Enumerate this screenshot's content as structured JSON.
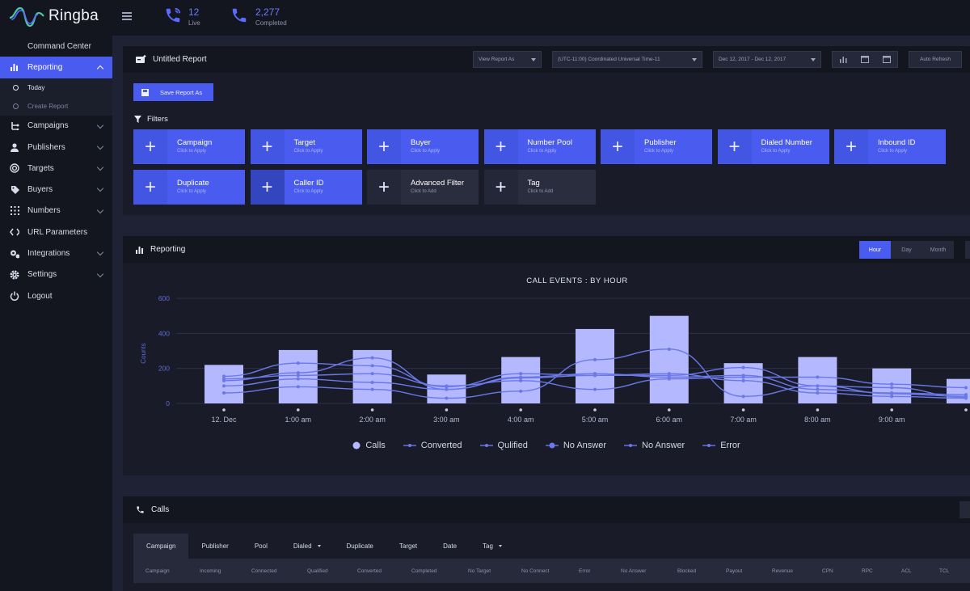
{
  "app": {
    "name": "Ringba"
  },
  "header": {
    "stats": [
      {
        "value": "12",
        "label": "Live",
        "icon": "phone-live-icon"
      },
      {
        "value": "2,277",
        "label": "Completed",
        "icon": "phone-completed-icon"
      }
    ]
  },
  "sidebar": {
    "items": [
      {
        "label": "Command Center",
        "icon": ""
      },
      {
        "label": "Reporting",
        "icon": "bar-chart-icon",
        "active": true
      },
      {
        "label": "Campaigns",
        "icon": "flow-icon"
      },
      {
        "label": "Publishers",
        "icon": "user-icon"
      },
      {
        "label": "Targets",
        "icon": "target-icon"
      },
      {
        "label": "Buyers",
        "icon": "tag-icon"
      },
      {
        "label": "Numbers",
        "icon": "grid-icon"
      },
      {
        "label": "URL Parameters",
        "icon": "code-icon"
      },
      {
        "label": "Integrations",
        "icon": "cogs-icon"
      },
      {
        "label": "Settings",
        "icon": "gear-icon"
      },
      {
        "label": "Logout",
        "icon": "power-icon"
      }
    ],
    "reporting_sub": [
      {
        "label": "Today"
      },
      {
        "label": "Create Report"
      }
    ]
  },
  "report": {
    "title": "Untitled Report",
    "view_report_as": "View Report As",
    "timezone": "(UTC-11:00) Coordinated Universal Time-11",
    "date_range": "Dec 12, 2017 - Dec 12, 2017",
    "auto_refresh": "Auto Refresh",
    "save_label": "Save Report As",
    "filters_label": "Filters",
    "filters": [
      {
        "title": "Campaign",
        "sub": "Click to Apply",
        "style": "blue"
      },
      {
        "title": "Target",
        "sub": "Click to Apply",
        "style": "blue"
      },
      {
        "title": "Buyer",
        "sub": "Click to Apply",
        "style": "blue"
      },
      {
        "title": "Number Pool",
        "sub": "Click to Apply",
        "style": "blue"
      },
      {
        "title": "Publisher",
        "sub": "Click to Apply",
        "style": "blue"
      },
      {
        "title": "Dialed Number",
        "sub": "Click to Apply",
        "style": "blue"
      },
      {
        "title": "Inbound ID",
        "sub": "Click to Apply",
        "style": "blue"
      },
      {
        "title": "Duplicate",
        "sub": "Click to Apply",
        "style": "blue"
      },
      {
        "title": "Caller ID",
        "sub": "Click to Apply",
        "style": "sel"
      },
      {
        "title": "Advanced Filter",
        "sub": "Click to Add",
        "style": "dark"
      },
      {
        "title": "Tag",
        "sub": "Click to Add",
        "style": "dark"
      }
    ]
  },
  "reporting": {
    "title": "Reporting",
    "granularity": [
      "Hour",
      "Day",
      "Month"
    ],
    "selected": "Hour"
  },
  "chart_data": {
    "type": "bar",
    "title": "CALL EVENTS : BY HOUR",
    "ylabel": "Counts",
    "ylim": [
      0,
      600
    ],
    "yticks": [
      0,
      200,
      400,
      600
    ],
    "categories": [
      "12. Dec",
      "1:00 am",
      "2:00 am",
      "3:00 am",
      "4:00 am",
      "5:00 am",
      "6:00 am",
      "7:00 am",
      "8:00 am",
      "9:00 am",
      ""
    ],
    "grid": true,
    "legend": "bottom",
    "series": [
      {
        "name": "Calls",
        "type": "bar",
        "values": [
          220,
          305,
          305,
          165,
          265,
          425,
          500,
          230,
          265,
          200,
          140
        ]
      },
      {
        "name": "Converted",
        "type": "line",
        "values": [
          130,
          175,
          260,
          80,
          145,
          160,
          170,
          130,
          60,
          40,
          30
        ]
      },
      {
        "name": "Qulified",
        "type": "line",
        "values": [
          60,
          95,
          80,
          30,
          70,
          250,
          310,
          40,
          100,
          90,
          35
        ]
      },
      {
        "name": "No Answer",
        "type": "line",
        "values": [
          155,
          230,
          215,
          95,
          170,
          160,
          160,
          205,
          100,
          55,
          40
        ]
      },
      {
        "name": "No Answer",
        "type": "line",
        "values": [
          140,
          160,
          170,
          100,
          130,
          80,
          140,
          150,
          150,
          110,
          90
        ]
      },
      {
        "name": "Error",
        "type": "line",
        "values": [
          100,
          140,
          120,
          80,
          150,
          170,
          150,
          160,
          80,
          60,
          50
        ]
      }
    ],
    "colors": {
      "bar": "#b3b8ff",
      "line": "#6b78e8"
    }
  },
  "calls": {
    "title": "Calls",
    "tabs": [
      {
        "label": "Campaign",
        "active": true
      },
      {
        "label": "Publisher"
      },
      {
        "label": "Pool"
      },
      {
        "label": "Dialed",
        "dropdown": true
      },
      {
        "label": "Duplicate"
      },
      {
        "label": "Target"
      },
      {
        "label": "Date"
      },
      {
        "label": "Tag",
        "dropdown": true
      }
    ],
    "columns": [
      "Campaign",
      "Incoming",
      "Connected",
      "Qualified",
      "Converted",
      "Completed",
      "No Target",
      "No Connect",
      "Error",
      "No Answer",
      "Blocked",
      "Payout",
      "Revenue",
      "CPN",
      "RPC",
      "ACL",
      "TCL"
    ]
  },
  "colors": {
    "accent": "#4a5cf0",
    "bg": "#1f2235",
    "panel": "#191b28"
  }
}
